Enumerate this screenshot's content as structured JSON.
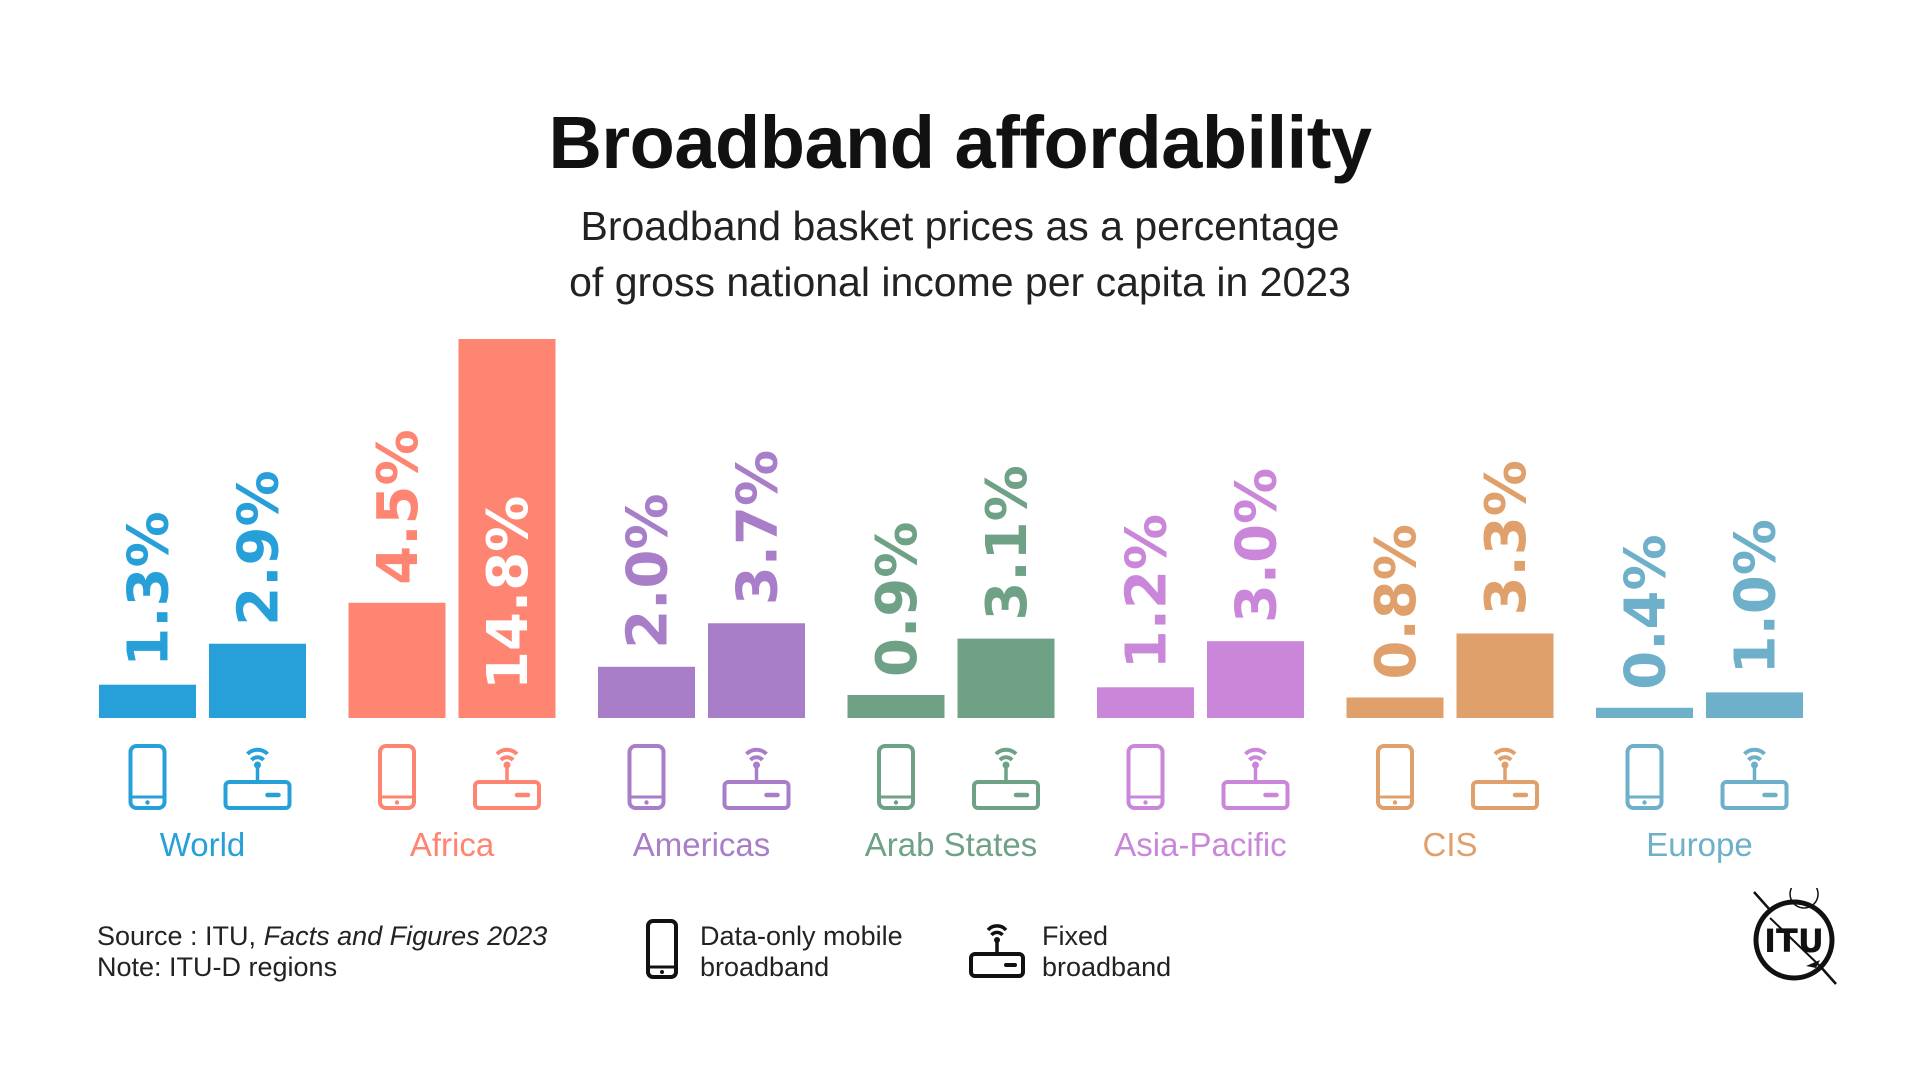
{
  "header": {
    "title": "Broadband affordability",
    "subtitle_line1": "Broadband basket prices as a percentage",
    "subtitle_line2": "of gross national income per capita in 2023"
  },
  "chart_data": {
    "type": "bar",
    "title": "Broadband affordability",
    "subtitle": "Broadband basket prices as a percentage of gross national income per capita in 2023",
    "xlabel": "",
    "ylabel": "",
    "unit": "% of GNI per capita",
    "ylim": [
      0,
      14.8
    ],
    "grid": false,
    "categories": [
      "World",
      "Africa",
      "Americas",
      "Arab States",
      "Asia-Pacific",
      "CIS",
      "Europe"
    ],
    "category_colors": [
      "#27a0d9",
      "#fe8572",
      "#a87ec9",
      "#6fa187",
      "#ca87da",
      "#dfa06b",
      "#6eafc9"
    ],
    "series": [
      {
        "name": "Data-only mobile broadband",
        "icon": "mobile-phone-icon",
        "values": [
          1.3,
          4.5,
          2.0,
          0.9,
          1.2,
          0.8,
          0.4
        ]
      },
      {
        "name": "Fixed broadband",
        "icon": "router-icon",
        "values": [
          2.9,
          14.8,
          3.7,
          3.1,
          3.0,
          3.3,
          1.0
        ]
      }
    ],
    "value_labels": [
      [
        "1.3%",
        "4.5%",
        "2.0%",
        "0.9%",
        "1.2%",
        "0.8%",
        "0.4%"
      ],
      [
        "2.9%",
        "14.8%",
        "3.7%",
        "3.1%",
        "3.0%",
        "3.3%",
        "1.0%"
      ]
    ]
  },
  "legend": {
    "mobile_line1": "Data-only mobile",
    "mobile_line2": "broadband",
    "fixed_line1": "Fixed",
    "fixed_line2": "broadband"
  },
  "footer": {
    "source_prefix": "Source : ITU, ",
    "source_title": "Facts and Figures 2023",
    "note": "Note: ITU-D regions"
  },
  "logo": {
    "text": "ITU"
  }
}
